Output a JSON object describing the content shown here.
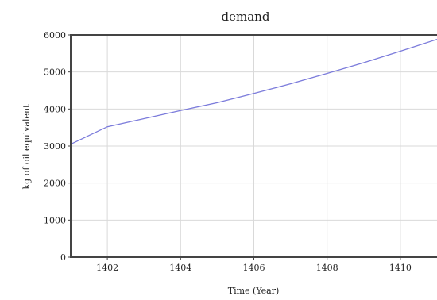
{
  "chart_data": {
    "type": "line",
    "title": "demand",
    "xlabel": "Time (Year)",
    "ylabel": "kg of oil equivalent",
    "xlim": [
      1401,
      1411
    ],
    "ylim": [
      0,
      6000
    ],
    "x_ticks": [
      1402,
      1404,
      1406,
      1408,
      1410
    ],
    "y_ticks": [
      0,
      1000,
      2000,
      3000,
      4000,
      5000,
      6000
    ],
    "grid": true,
    "legend": "none",
    "colors": {
      "line": "#7b7bdb",
      "grid": "#d9d9d9",
      "frame": "#444444"
    },
    "series": [
      {
        "x": [
          1401,
          1402,
          1403,
          1404,
          1405,
          1406,
          1407,
          1408,
          1409,
          1410,
          1411
        ],
        "values": [
          3050,
          3520,
          3740,
          3960,
          4170,
          4420,
          4680,
          4960,
          5250,
          5560,
          5880
        ]
      }
    ]
  }
}
